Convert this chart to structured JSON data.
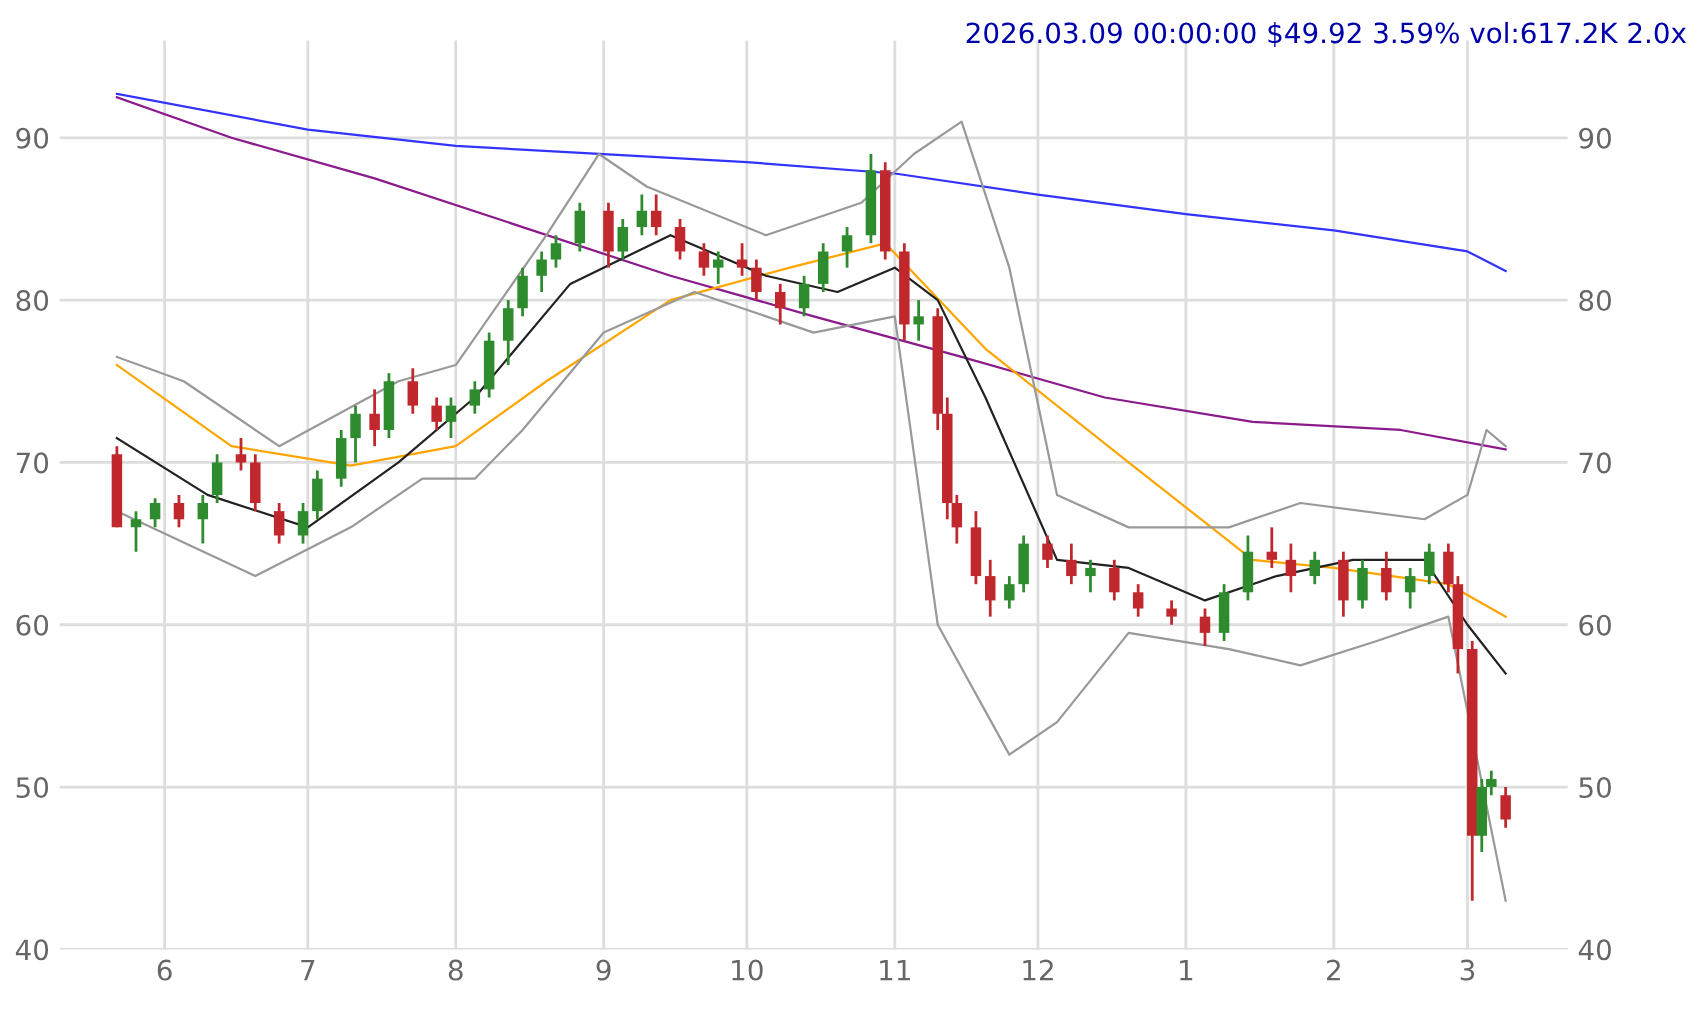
{
  "chart_data": {
    "type": "candlestick",
    "title": "2026.03.09 00:00:00 $49.92 3.59% vol:617.2K 2.0x",
    "x": [
      "2025-05-22",
      "2025-05-26",
      "2025-05-30",
      "2025-06-04",
      "2025-06-09",
      "2025-06-12",
      "2025-06-17",
      "2025-06-20",
      "2025-06-25",
      "2025-06-30",
      "2025-07-03",
      "2025-07-08",
      "2025-07-11",
      "2025-07-15",
      "2025-07-18",
      "2025-07-23",
      "2025-07-28",
      "2025-07-31",
      "2025-08-05",
      "2025-08-08",
      "2025-08-12",
      "2025-08-15",
      "2025-08-19",
      "2025-08-22",
      "2025-08-27",
      "2025-09-02",
      "2025-09-05",
      "2025-09-09",
      "2025-09-12",
      "2025-09-17",
      "2025-09-22",
      "2025-09-25",
      "2025-09-30",
      "2025-10-03",
      "2025-10-08",
      "2025-10-13",
      "2025-10-17",
      "2025-10-22",
      "2025-10-27",
      "2025-10-30",
      "2025-11-03",
      "2025-11-06",
      "2025-11-10",
      "2025-11-12",
      "2025-11-14",
      "2025-11-18",
      "2025-11-21",
      "2025-11-25",
      "2025-11-28",
      "2025-12-03",
      "2025-12-08",
      "2025-12-12",
      "2025-12-17",
      "2025-12-22",
      "2025-12-29",
      "2026-01-05",
      "2026-01-09",
      "2026-01-14",
      "2026-01-19",
      "2026-01-23",
      "2026-01-28",
      "2026-02-03",
      "2026-02-07",
      "2026-02-12",
      "2026-02-17",
      "2026-02-21",
      "2026-02-25",
      "2026-02-27",
      "2026-03-02",
      "2026-03-04",
      "2026-03-06",
      "2026-03-09"
    ],
    "ohlc": [
      [
        70.5,
        71,
        66,
        66
      ],
      [
        66,
        67,
        64.5,
        66.5
      ],
      [
        66.5,
        67.8,
        66,
        67.5
      ],
      [
        67.5,
        68,
        66,
        66.5
      ],
      [
        66.5,
        68,
        65,
        67.5
      ],
      [
        68,
        70.5,
        67.5,
        70
      ],
      [
        70.5,
        71.5,
        69.5,
        70
      ],
      [
        70,
        70.5,
        67,
        67.5
      ],
      [
        67,
        67.5,
        65,
        65.5
      ],
      [
        65.5,
        67.5,
        65,
        67
      ],
      [
        67,
        69.5,
        66.5,
        69
      ],
      [
        69,
        72,
        68.5,
        71.5
      ],
      [
        71.5,
        73.5,
        70,
        73
      ],
      [
        73,
        74.5,
        71,
        72
      ],
      [
        72,
        75.5,
        71.5,
        75
      ],
      [
        75,
        75.8,
        73,
        73.5
      ],
      [
        73.5,
        74,
        72,
        72.5
      ],
      [
        72.5,
        74,
        71.5,
        73.5
      ],
      [
        73.5,
        75,
        73,
        74.5
      ],
      [
        74.5,
        78,
        74,
        77.5
      ],
      [
        77.5,
        80,
        76,
        79.5
      ],
      [
        79.5,
        82,
        79,
        81.5
      ],
      [
        81.5,
        83,
        80.5,
        82.5
      ],
      [
        82.5,
        84,
        82,
        83.5
      ],
      [
        83.5,
        86,
        83,
        85.5
      ],
      [
        85.5,
        86,
        82,
        83
      ],
      [
        83,
        85,
        82.5,
        84.5
      ],
      [
        84.5,
        86.5,
        84,
        85.5
      ],
      [
        85.5,
        86.5,
        84,
        84.5
      ],
      [
        84.5,
        85,
        82.5,
        83
      ],
      [
        83,
        83.5,
        81.5,
        82
      ],
      [
        82,
        83,
        81,
        82.5
      ],
      [
        82.5,
        83.5,
        81.5,
        82
      ],
      [
        82,
        82.5,
        80,
        80.5
      ],
      [
        80.5,
        81,
        78.5,
        79.5
      ],
      [
        79.5,
        81.5,
        79,
        81
      ],
      [
        81,
        83.5,
        80.5,
        83
      ],
      [
        83,
        84.5,
        82,
        84
      ],
      [
        84,
        89,
        83.5,
        88
      ],
      [
        88,
        88.5,
        82.5,
        83
      ],
      [
        83,
        83.5,
        77.5,
        78.5
      ],
      [
        78.5,
        80,
        77.5,
        79
      ],
      [
        79,
        79.5,
        72,
        73
      ],
      [
        73,
        74,
        66.5,
        67.5
      ],
      [
        67.5,
        68,
        65,
        66
      ],
      [
        66,
        67,
        62.5,
        63
      ],
      [
        63,
        64,
        60.5,
        61.5
      ],
      [
        61.5,
        63,
        61,
        62.5
      ],
      [
        62.5,
        65.5,
        62,
        65
      ],
      [
        65,
        65.5,
        63.5,
        64
      ],
      [
        64,
        65,
        62.5,
        63
      ],
      [
        63,
        64,
        62,
        63.5
      ],
      [
        63.5,
        64,
        61.5,
        62
      ],
      [
        62,
        62.5,
        60.5,
        61
      ],
      [
        61,
        61.5,
        60,
        60.5
      ],
      [
        60.5,
        61,
        58.7,
        59.5
      ],
      [
        59.5,
        62.5,
        59,
        62
      ],
      [
        62,
        65.5,
        61.5,
        64.5
      ],
      [
        64.5,
        66,
        63.5,
        64
      ],
      [
        64,
        65,
        62,
        63
      ],
      [
        63,
        64.5,
        62.5,
        64
      ],
      [
        64,
        64.5,
        60.5,
        61.5
      ],
      [
        61.5,
        64,
        61,
        63.5
      ],
      [
        63.5,
        64.5,
        61.5,
        62
      ],
      [
        62,
        63.5,
        61,
        63
      ],
      [
        63,
        65,
        62.5,
        64.5
      ],
      [
        64.5,
        65,
        62,
        62.5
      ],
      [
        62.5,
        63,
        57,
        58.5
      ],
      [
        58.5,
        59,
        43,
        47
      ],
      [
        47,
        50.5,
        46,
        50
      ],
      [
        50,
        51,
        49.5,
        50.5
      ],
      [
        49.5,
        50,
        47.5,
        48
      ]
    ],
    "colors": [
      "#c0282d",
      "#2e8b2e",
      "#2e8b2e",
      "#c0282d",
      "#2e8b2e",
      "#2e8b2e",
      "#c0282d",
      "#c0282d",
      "#c0282d",
      "#2e8b2e",
      "#2e8b2e",
      "#2e8b2e",
      "#2e8b2e",
      "#c0282d",
      "#2e8b2e",
      "#c0282d",
      "#c0282d",
      "#2e8b2e",
      "#2e8b2e",
      "#2e8b2e",
      "#2e8b2e",
      "#2e8b2e",
      "#2e8b2e",
      "#2e8b2e",
      "#2e8b2e",
      "#c0282d",
      "#2e8b2e",
      "#2e8b2e",
      "#c0282d",
      "#c0282d",
      "#c0282d",
      "#2e8b2e",
      "#c0282d",
      "#c0282d",
      "#c0282d",
      "#2e8b2e",
      "#2e8b2e",
      "#2e8b2e",
      "#2e8b2e",
      "#c0282d",
      "#c0282d",
      "#2e8b2e",
      "#c0282d",
      "#c0282d",
      "#c0282d",
      "#c0282d",
      "#c0282d",
      "#2e8b2e",
      "#2e8b2e",
      "#c0282d",
      "#c0282d",
      "#2e8b2e",
      "#c0282d",
      "#c0282d",
      "#c0282d",
      "#c0282d",
      "#2e8b2e",
      "#2e8b2e",
      "#c0282d",
      "#c0282d",
      "#2e8b2e",
      "#c0282d",
      "#2e8b2e",
      "#c0282d",
      "#2e8b2e",
      "#2e8b2e",
      "#c0282d",
      "#c0282d",
      "#c0282d",
      "#2e8b2e",
      "#2e8b2e",
      "#c0282d"
    ],
    "series": [
      {
        "type": "line",
        "color": "#3333ff",
        "x": [
          "2025-05-22",
          "2025-07-01",
          "2025-08-01",
          "2025-09-01",
          "2025-10-01",
          "2025-11-01",
          "2025-12-01",
          "2026-01-01",
          "2026-02-01",
          "2026-03-01",
          "2026-03-09"
        ],
        "values": [
          92.7,
          90.5,
          89.5,
          89,
          88.5,
          87.8,
          86.5,
          85.3,
          84.3,
          83,
          81.8
        ]
      },
      {
        "type": "line",
        "color": "#8b1a8b",
        "x": [
          "2025-05-22",
          "2025-06-15",
          "2025-07-15",
          "2025-08-15",
          "2025-09-15",
          "2025-10-15",
          "2025-11-15",
          "2025-12-15",
          "2026-01-15",
          "2026-02-15",
          "2026-03-09"
        ],
        "values": [
          92.5,
          90,
          87.5,
          84.5,
          81.5,
          79,
          76.5,
          74,
          72.5,
          72,
          70.8
        ]
      },
      {
        "type": "line",
        "color": "#ffa500",
        "x": [
          "2025-05-22",
          "2025-06-15",
          "2025-07-10",
          "2025-08-01",
          "2025-08-20",
          "2025-09-15",
          "2025-10-10",
          "2025-10-30",
          "2025-11-20",
          "2025-12-20",
          "2026-01-15",
          "2026-02-01",
          "2026-02-25",
          "2026-03-09"
        ],
        "values": [
          76,
          71,
          69.8,
          71,
          75,
          80,
          82,
          83.5,
          77,
          70,
          64,
          63.5,
          62.5,
          60.5
        ]
      },
      {
        "type": "line",
        "color": "#222222",
        "x": [
          "2025-05-22",
          "2025-06-10",
          "2025-07-01",
          "2025-07-20",
          "2025-08-05",
          "2025-08-25",
          "2025-09-15",
          "2025-10-05",
          "2025-10-20",
          "2025-11-01",
          "2025-11-10",
          "2025-11-20",
          "2025-12-05",
          "2025-12-20",
          "2026-01-05",
          "2026-01-20",
          "2026-02-05",
          "2026-02-20",
          "2026-03-01",
          "2026-03-09"
        ],
        "values": [
          71.5,
          68,
          66,
          70,
          74,
          81,
          84,
          81.5,
          80.5,
          82,
          80,
          74,
          64,
          63.5,
          61.5,
          63,
          64,
          64,
          60,
          57
        ]
      },
      {
        "type": "line",
        "color": "#999999",
        "x": [
          "2025-05-22",
          "2025-06-05",
          "2025-06-25",
          "2025-07-20",
          "2025-08-01",
          "2025-08-20",
          "2025-08-31",
          "2025-09-10",
          "2025-10-05",
          "2025-10-25",
          "2025-11-05",
          "2025-11-15",
          "2025-11-25",
          "2025-12-05",
          "2025-12-20",
          "2026-01-10",
          "2026-01-25",
          "2026-02-20",
          "2026-03-01",
          "2026-03-05",
          "2026-03-09"
        ],
        "values": [
          76.5,
          75,
          71,
          75,
          76,
          84,
          89,
          87,
          84,
          86,
          89,
          91,
          82,
          68,
          66,
          66,
          67.5,
          66.5,
          68,
          72,
          71
        ]
      },
      {
        "type": "line",
        "color": "#999999",
        "x": [
          "2025-05-22",
          "2025-06-20",
          "2025-07-10",
          "2025-07-25",
          "2025-08-05",
          "2025-08-15",
          "2025-09-01",
          "2025-09-20",
          "2025-10-15",
          "2025-11-01",
          "2025-11-10",
          "2025-11-25",
          "2025-12-05",
          "2025-12-20",
          "2026-01-10",
          "2026-01-25",
          "2026-02-10",
          "2026-02-25",
          "2026-03-09"
        ],
        "values": [
          67,
          63,
          66,
          69,
          69,
          72,
          78,
          80.5,
          78,
          79,
          60,
          52,
          54,
          59.5,
          58.5,
          57.5,
          59,
          60.5,
          43
        ]
      }
    ],
    "xlim": [
      "2025-05-10",
      "2026-03-22"
    ],
    "xticks": [
      {
        "value": "2025-06-01",
        "label": "6"
      },
      {
        "value": "2025-07-01",
        "label": "7"
      },
      {
        "value": "2025-08-01",
        "label": "8"
      },
      {
        "value": "2025-09-01",
        "label": "9"
      },
      {
        "value": "2025-10-01",
        "label": "10"
      },
      {
        "value": "2025-11-01",
        "label": "11"
      },
      {
        "value": "2025-12-01",
        "label": "12"
      },
      {
        "value": "2026-01-01",
        "label": "1"
      },
      {
        "value": "2026-02-01",
        "label": "2"
      },
      {
        "value": "2026-03-01",
        "label": "3"
      }
    ],
    "ylim": [
      40,
      96
    ],
    "yticks": [
      40,
      50,
      60,
      70,
      80,
      90
    ],
    "y2lim": [
      40,
      96
    ],
    "y2ticks": [
      40,
      50,
      60,
      70,
      80,
      90
    ],
    "grid": true
  }
}
